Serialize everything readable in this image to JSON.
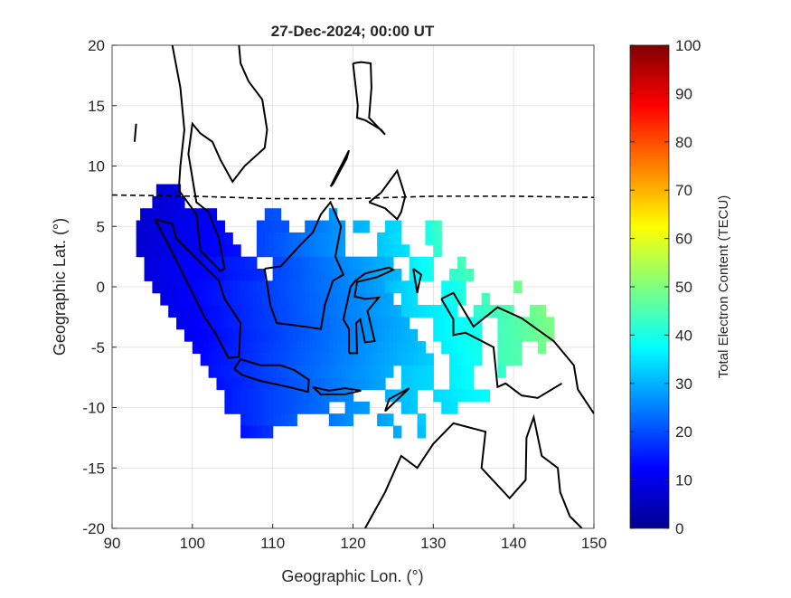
{
  "chart_data": {
    "type": "heatmap",
    "title": "27-Dec-2024; 00:00 UT",
    "xlabel": "Geographic Lon. (°)",
    "ylabel": "Geographic Lat. (°)",
    "xlim": [
      90,
      150
    ],
    "ylim": [
      -20,
      20
    ],
    "xticks": [
      "90",
      "100",
      "110",
      "120",
      "130",
      "140",
      "150"
    ],
    "yticks": [
      "20",
      "15",
      "10",
      "5",
      "0",
      "-5",
      "-10",
      "-15",
      "-20"
    ],
    "grid": true,
    "colorbar": {
      "label": "Total Electron Content (TECU)",
      "range": [
        0,
        100
      ],
      "ticks": [
        "100",
        "90",
        "80",
        "70",
        "60",
        "50",
        "40",
        "30",
        "20",
        "10",
        "0"
      ],
      "colormap": "jet",
      "placement": "right"
    },
    "tec_bands": [
      {
        "lat": 8,
        "segments": [
          [
            95.5,
            98.5,
            8,
            10
          ]
        ]
      },
      {
        "lat": 7,
        "segments": [
          [
            95,
            99,
            8,
            10
          ]
        ]
      },
      {
        "lat": 6,
        "segments": [
          [
            93.5,
            103,
            8,
            12
          ],
          [
            109,
            111,
            20,
            21
          ],
          [
            117,
            118,
            27,
            28
          ]
        ]
      },
      {
        "lat": 5,
        "segments": [
          [
            93,
            104,
            8,
            13
          ],
          [
            108,
            112,
            19,
            21
          ],
          [
            114,
            119,
            23,
            28
          ],
          [
            120,
            122,
            30,
            31
          ],
          [
            124,
            126,
            33,
            34
          ],
          [
            129,
            131,
            40,
            45
          ]
        ]
      },
      {
        "lat": 4,
        "segments": [
          [
            93,
            105,
            8,
            14
          ],
          [
            108,
            119,
            19,
            28
          ],
          [
            123,
            126,
            32,
            35
          ],
          [
            129,
            131,
            40,
            44
          ]
        ]
      },
      {
        "lat": 3,
        "segments": [
          [
            93,
            106,
            8,
            14
          ],
          [
            108,
            119,
            19,
            28
          ],
          [
            123,
            127,
            32,
            35
          ],
          [
            130,
            131,
            42,
            43
          ]
        ]
      },
      {
        "lat": 2,
        "segments": [
          [
            94,
            108,
            9,
            17
          ],
          [
            110,
            125,
            19,
            31
          ],
          [
            127,
            130,
            36,
            40
          ],
          [
            133,
            134,
            44,
            45
          ]
        ]
      },
      {
        "lat": 1,
        "segments": [
          [
            94,
            109,
            9,
            17
          ],
          [
            110,
            126,
            19,
            31
          ],
          [
            127,
            130,
            36,
            40
          ],
          [
            132,
            135,
            42,
            45
          ]
        ]
      },
      {
        "lat": 0,
        "segments": [
          [
            95,
            124,
            9,
            29
          ],
          [
            124,
            128,
            31,
            35
          ],
          [
            131,
            134,
            38,
            41
          ],
          [
            140,
            141,
            48,
            49
          ]
        ]
      },
      {
        "lat": -1,
        "segments": [
          [
            96,
            125,
            10,
            29
          ],
          [
            126,
            128,
            33,
            35
          ],
          [
            131,
            134,
            38,
            41
          ],
          [
            136,
            137,
            44,
            45
          ]
        ]
      },
      {
        "lat": -2,
        "segments": [
          [
            97,
            126,
            10,
            30
          ],
          [
            126,
            133,
            33,
            38
          ],
          [
            135,
            140,
            42,
            46
          ],
          [
            142,
            144,
            48,
            50
          ]
        ]
      },
      {
        "lat": -3,
        "segments": [
          [
            98,
            127,
            11,
            30
          ],
          [
            130,
            136,
            36,
            40
          ],
          [
            138,
            145,
            44,
            50
          ]
        ]
      },
      {
        "lat": -4,
        "segments": [
          [
            99,
            128,
            11,
            31
          ],
          [
            130,
            136,
            36,
            40
          ],
          [
            138,
            145,
            44,
            50
          ]
        ]
      },
      {
        "lat": -5,
        "segments": [
          [
            100,
            129,
            12,
            32
          ],
          [
            131,
            136,
            36,
            40
          ],
          [
            138,
            141,
            44,
            46
          ],
          [
            143,
            144,
            48,
            49
          ]
        ]
      },
      {
        "lat": -6,
        "segments": [
          [
            101,
            130,
            13,
            33
          ],
          [
            132,
            136,
            36,
            40
          ],
          [
            138,
            141,
            44,
            46
          ]
        ]
      },
      {
        "lat": -7,
        "segments": [
          [
            102,
            125,
            14,
            30
          ],
          [
            126,
            130,
            32,
            34
          ],
          [
            132,
            135,
            36,
            38
          ],
          [
            138,
            139,
            42,
            43
          ]
        ]
      },
      {
        "lat": -8,
        "segments": [
          [
            103,
            124,
            14,
            29
          ],
          [
            126,
            130,
            32,
            34
          ],
          [
            132,
            135,
            36,
            38
          ]
        ]
      },
      {
        "lat": -9,
        "segments": [
          [
            104,
            120,
            15,
            26
          ],
          [
            124,
            128,
            30,
            33
          ],
          [
            130,
            137,
            34,
            38
          ]
        ]
      },
      {
        "lat": -10,
        "segments": [
          [
            104,
            117,
            15,
            24
          ],
          [
            119,
            122,
            26,
            28
          ],
          [
            126,
            128,
            31,
            33
          ],
          [
            131,
            133,
            34,
            35
          ]
        ]
      },
      {
        "lat": -11,
        "segments": [
          [
            106,
            113,
            16,
            22
          ],
          [
            117,
            120,
            24,
            27
          ],
          [
            123,
            125,
            28,
            30
          ],
          [
            128,
            129,
            32,
            33
          ]
        ]
      },
      {
        "lat": -12,
        "segments": [
          [
            106,
            110,
            14,
            18
          ],
          [
            125,
            126,
            29,
            30
          ],
          [
            128,
            129,
            31,
            32
          ]
        ]
      }
    ],
    "magnetic_equator": [
      [
        90,
        7.6
      ],
      [
        100,
        7.5
      ],
      [
        110,
        7.3
      ],
      [
        120,
        7.3
      ],
      [
        130,
        7.5
      ],
      [
        140,
        7.5
      ],
      [
        150,
        7.4
      ]
    ],
    "coastlines": [
      [
        [
          95.3,
          5.6
        ],
        [
          97,
          3.5
        ],
        [
          98.5,
          1.5
        ],
        [
          100,
          -0.5
        ],
        [
          101.5,
          -2.5
        ],
        [
          103,
          -4
        ],
        [
          104.5,
          -5.9
        ],
        [
          105.8,
          -5.8
        ],
        [
          106,
          -3
        ],
        [
          104,
          -1
        ],
        [
          103.3,
          0.5
        ],
        [
          101,
          2
        ],
        [
          98,
          4
        ],
        [
          97.5,
          5.2
        ],
        [
          95.3,
          5.6
        ]
      ],
      [
        [
          97.5,
          20
        ],
        [
          98.5,
          16.5
        ],
        [
          99,
          13
        ],
        [
          98.5,
          10
        ],
        [
          98.3,
          8
        ],
        [
          100.5,
          6
        ],
        [
          101,
          3
        ],
        [
          103.5,
          1.3
        ],
        [
          104,
          1.5
        ],
        [
          103.3,
          4
        ],
        [
          102,
          6.2
        ],
        [
          100.5,
          7
        ],
        [
          100,
          9
        ],
        [
          99.5,
          11
        ],
        [
          100,
          13.5
        ],
        [
          101,
          12.7
        ],
        [
          102.5,
          12
        ],
        [
          103.5,
          10.5
        ],
        [
          105,
          8.7
        ],
        [
          106.5,
          10
        ],
        [
          109,
          11.5
        ],
        [
          109.3,
          13
        ],
        [
          108.7,
          15.5
        ],
        [
          107,
          17
        ],
        [
          106,
          18.5
        ],
        [
          105.8,
          20
        ]
      ],
      [
        [
          109,
          1.5
        ],
        [
          109.7,
          -1.5
        ],
        [
          110.5,
          -3
        ],
        [
          114,
          -3.3
        ],
        [
          116,
          -3.5
        ],
        [
          116.5,
          -1.5
        ],
        [
          117.5,
          0.5
        ],
        [
          118.8,
          1
        ],
        [
          117.8,
          2.5
        ],
        [
          118.5,
          5
        ],
        [
          117.2,
          7
        ],
        [
          116,
          6
        ],
        [
          115,
          4.5
        ],
        [
          113.5,
          3.5
        ],
        [
          111,
          1.7
        ],
        [
          109,
          1.5
        ]
      ],
      [
        [
          105.2,
          -6.8
        ],
        [
          106,
          -6
        ],
        [
          108.5,
          -6.5
        ],
        [
          111,
          -6.5
        ],
        [
          112.7,
          -6.9
        ],
        [
          114.5,
          -7.7
        ],
        [
          114.4,
          -8.7
        ],
        [
          112,
          -8.3
        ],
        [
          108.5,
          -7.8
        ],
        [
          106.2,
          -7.3
        ],
        [
          105.2,
          -6.8
        ]
      ],
      [
        [
          119.5,
          -5.5
        ],
        [
          119.5,
          -3.5
        ],
        [
          118.8,
          -2.7
        ],
        [
          119.7,
          0
        ],
        [
          120.3,
          0.5
        ],
        [
          121.5,
          1.1
        ],
        [
          124.5,
          1.6
        ],
        [
          125,
          1.4
        ],
        [
          123,
          0.8
        ],
        [
          120.5,
          0.4
        ],
        [
          120.2,
          -0.8
        ],
        [
          121.5,
          -1
        ],
        [
          123.2,
          -0.9
        ],
        [
          121.8,
          -2
        ],
        [
          122.7,
          -4.5
        ],
        [
          121.5,
          -4.6
        ],
        [
          120.9,
          -2.7
        ],
        [
          120.4,
          -3
        ],
        [
          120.5,
          -5.5
        ],
        [
          119.5,
          -5.5
        ]
      ],
      [
        [
          120,
          18.5
        ],
        [
          120.6,
          15
        ],
        [
          120.5,
          14
        ],
        [
          121.5,
          13.8
        ],
        [
          123.5,
          13
        ],
        [
          124,
          12.6
        ],
        [
          122,
          14
        ],
        [
          122.3,
          16.5
        ],
        [
          122.2,
          18.5
        ],
        [
          121,
          18.6
        ],
        [
          120,
          18.5
        ]
      ],
      [
        [
          117.2,
          8.3
        ],
        [
          119.5,
          11.3
        ],
        [
          119.2,
          10.6
        ],
        [
          117.5,
          8.5
        ],
        [
          117.2,
          8.3
        ]
      ],
      [
        [
          122,
          7
        ],
        [
          123.5,
          7.8
        ],
        [
          125.5,
          9.6
        ],
        [
          126.5,
          7.5
        ],
        [
          126,
          6.2
        ],
        [
          125.5,
          5.6
        ],
        [
          124,
          6.5
        ],
        [
          122,
          7
        ]
      ],
      [
        [
          115,
          -8.3
        ],
        [
          117,
          -8.6
        ],
        [
          119,
          -8.4
        ],
        [
          121,
          -8.6
        ],
        [
          119,
          -8.9
        ],
        [
          116,
          -8.9
        ],
        [
          115,
          -8.3
        ]
      ],
      [
        [
          124,
          -10.3
        ],
        [
          127,
          -8.4
        ],
        [
          124.5,
          -9.3
        ],
        [
          124,
          -10.3
        ]
      ],
      [
        [
          127.5,
          1.5
        ],
        [
          128,
          -0.5
        ],
        [
          128.3,
          0.5
        ],
        [
          128.5,
          1
        ],
        [
          127.5,
          1.5
        ]
      ],
      [
        [
          131,
          -1
        ],
        [
          132.5,
          -0.5
        ],
        [
          135,
          -3.3
        ],
        [
          138,
          -1.7
        ],
        [
          141,
          -2.6
        ],
        [
          145,
          -4.5
        ],
        [
          147.5,
          -6.5
        ],
        [
          148,
          -8.5
        ],
        [
          150,
          -10.5
        ]
      ],
      [
        [
          146,
          -8
        ],
        [
          143,
          -9.2
        ],
        [
          141,
          -9
        ],
        [
          139,
          -8
        ],
        [
          138,
          -8.3
        ],
        [
          137.5,
          -5
        ],
        [
          134,
          -3.8
        ],
        [
          132.5,
          -4
        ],
        [
          132.5,
          -2.7
        ],
        [
          131,
          -1
        ]
      ],
      [
        [
          121.5,
          -20
        ],
        [
          124,
          -17
        ],
        [
          126,
          -14
        ],
        [
          128,
          -15
        ],
        [
          130,
          -13
        ],
        [
          132.5,
          -11.3
        ],
        [
          136.5,
          -12
        ],
        [
          136,
          -15
        ],
        [
          139.5,
          -17.5
        ],
        [
          141.5,
          -16
        ],
        [
          141.6,
          -12.5
        ],
        [
          142.5,
          -10.8
        ],
        [
          143.5,
          -14
        ],
        [
          145.5,
          -15
        ],
        [
          145.8,
          -17
        ],
        [
          147,
          -19
        ],
        [
          148.5,
          -20
        ]
      ],
      [
        [
          92.8,
          12
        ],
        [
          93,
          13.5
        ]
      ]
    ]
  }
}
